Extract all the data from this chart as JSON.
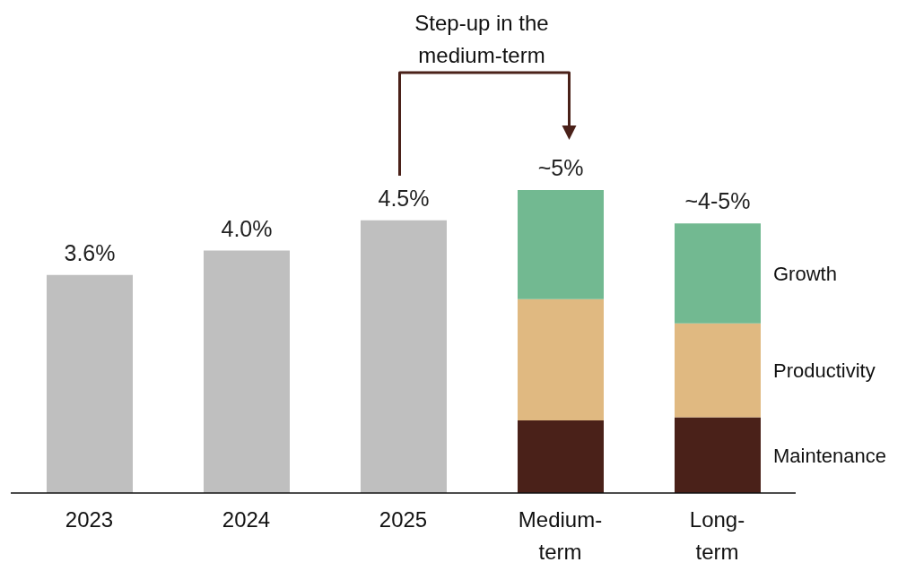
{
  "chart_data": {
    "type": "bar",
    "stacked": true,
    "categories": [
      "2023",
      "2024",
      "2025",
      "Medium-term",
      "Long-term"
    ],
    "series": [
      {
        "color": "#bfbfbf",
        "values": [
          3.6,
          4.0,
          4.5,
          null,
          null
        ],
        "value_labels": [
          "3.6%",
          "4.0%",
          "4.5%",
          null,
          null
        ]
      },
      {
        "name": "Maintenance",
        "color": "#4a2119",
        "values": [
          null,
          null,
          null,
          1.2,
          1.25
        ]
      },
      {
        "name": "Productivity",
        "color": "#e0b981",
        "values": [
          null,
          null,
          null,
          2.0,
          1.55
        ]
      },
      {
        "name": "Growth",
        "color": "#72b991",
        "values": [
          null,
          null,
          null,
          1.8,
          1.65
        ]
      }
    ],
    "totals": [
      null,
      null,
      null,
      "~5%",
      "~4-5%"
    ],
    "annotations": [
      "Step-up in the medium-term"
    ]
  }
}
